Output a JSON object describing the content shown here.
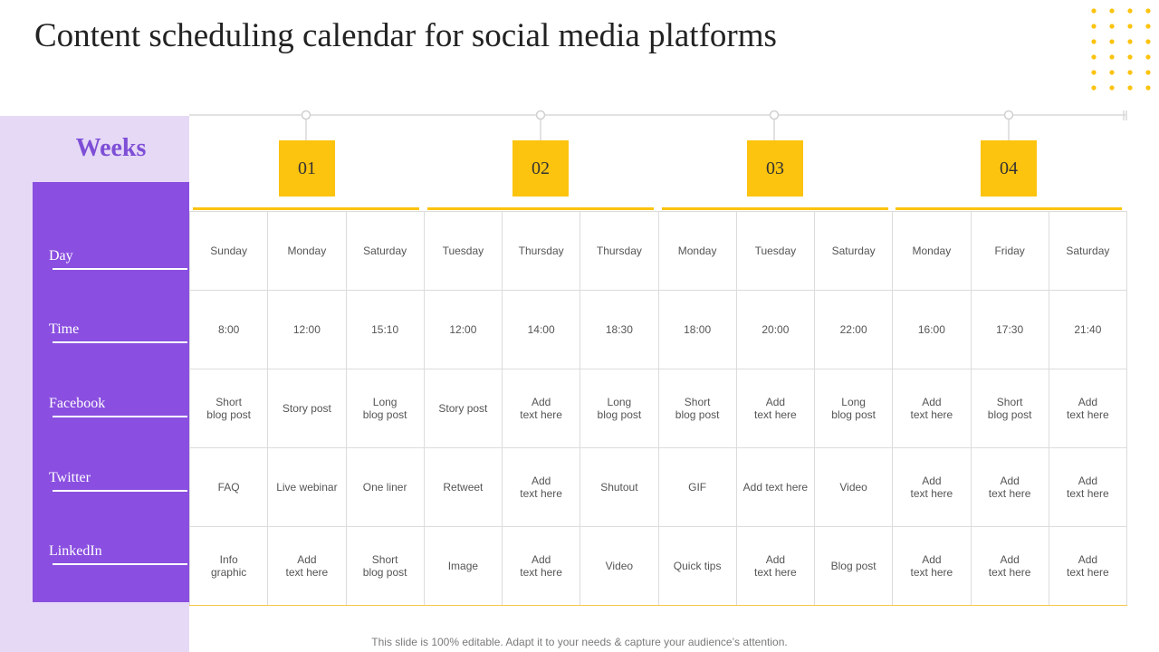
{
  "title": "Content scheduling calendar for social media platforms",
  "sidebar": {
    "heading": "Weeks",
    "rows": [
      "Day",
      "Time",
      "Facebook",
      "Twitter",
      "LinkedIn"
    ]
  },
  "weeks": [
    "01",
    "02",
    "03",
    "04"
  ],
  "table": {
    "rows": [
      [
        "Sunday",
        "Monday",
        "Saturday",
        "Tuesday",
        "Thursday",
        "Thursday",
        "Monday",
        "Tuesday",
        "Saturday",
        "Monday",
        "Friday",
        "Saturday"
      ],
      [
        "8:00",
        "12:00",
        "15:10",
        "12:00",
        "14:00",
        "18:30",
        "18:00",
        "20:00",
        "22:00",
        "16:00",
        "17:30",
        "21:40"
      ],
      [
        "Short\nblog post",
        "Story post",
        "Long\nblog post",
        "Story post",
        "Add\ntext here",
        "Long\nblog post",
        "Short\nblog post",
        "Add\ntext here",
        "Long\nblog post",
        "Add\ntext here",
        "Short\nblog post",
        "Add\ntext here"
      ],
      [
        "FAQ",
        "Live webinar",
        "One liner",
        "Retweet",
        "Add\ntext here",
        "Shutout",
        "GIF",
        "Add text here",
        "Video",
        "Add\ntext here",
        "Add\ntext here",
        "Add\ntext here"
      ],
      [
        "Info\ngraphic",
        "Add\ntext here",
        "Short\nblog post",
        "Image",
        "Add\ntext here",
        "Video",
        "Quick tips",
        "Add\ntext here",
        "Blog post",
        "Add\ntext here",
        "Add\ntext here",
        "Add\ntext here"
      ]
    ]
  },
  "footer": "This slide is 100% editable. Adapt it to your needs & capture your audience’s attention.",
  "colors": {
    "accent_yellow": "#fcc30f",
    "accent_purple": "#8a4fe0",
    "panel_lilac": "#e6d9f6",
    "weeks_text": "#7e4fd6"
  }
}
